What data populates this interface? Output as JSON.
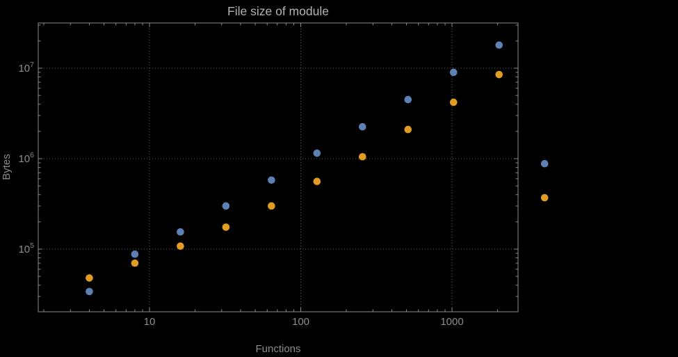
{
  "background": "#000000",
  "chart_data": {
    "type": "scatter",
    "title": "File size of module",
    "xlabel": "Functions",
    "ylabel": "Bytes",
    "x_scale": "log",
    "y_scale": "log",
    "xlim": [
      1.6,
      2800
    ],
    "ylim": [
      20000,
      32000000
    ],
    "grid": "dotted-major",
    "legend": "none",
    "x": [
      4,
      8,
      16,
      32,
      64,
      128,
      256,
      512,
      1024,
      2048,
      4096
    ],
    "series": [
      {
        "name": "series-1-blue",
        "color": "#5e81b5",
        "values": [
          34000,
          88000,
          155000,
          300000,
          580000,
          1150000,
          2250000,
          4500000,
          9000000,
          18000000,
          880000
        ]
      },
      {
        "name": "series-2-orange",
        "color": "#e19c24",
        "values": [
          48000,
          70000,
          108000,
          175000,
          300000,
          560000,
          1050000,
          2100000,
          4200000,
          8500000,
          370000
        ]
      }
    ],
    "x_ticks": [
      {
        "value": 10,
        "label": "10"
      },
      {
        "value": 100,
        "label": "100"
      },
      {
        "value": 1000,
        "label": "1000"
      }
    ],
    "y_ticks": [
      {
        "value": 100000,
        "mantissa": "10",
        "exponent": "5"
      },
      {
        "value": 1000000,
        "mantissa": "10",
        "exponent": "6"
      },
      {
        "value": 10000000,
        "mantissa": "10",
        "exponent": "7"
      }
    ],
    "colors": {
      "frame": "#8d8d8d",
      "grid": "#616161",
      "tick_text": "#8d8d8d",
      "title_text": "#b3b3b3"
    }
  }
}
